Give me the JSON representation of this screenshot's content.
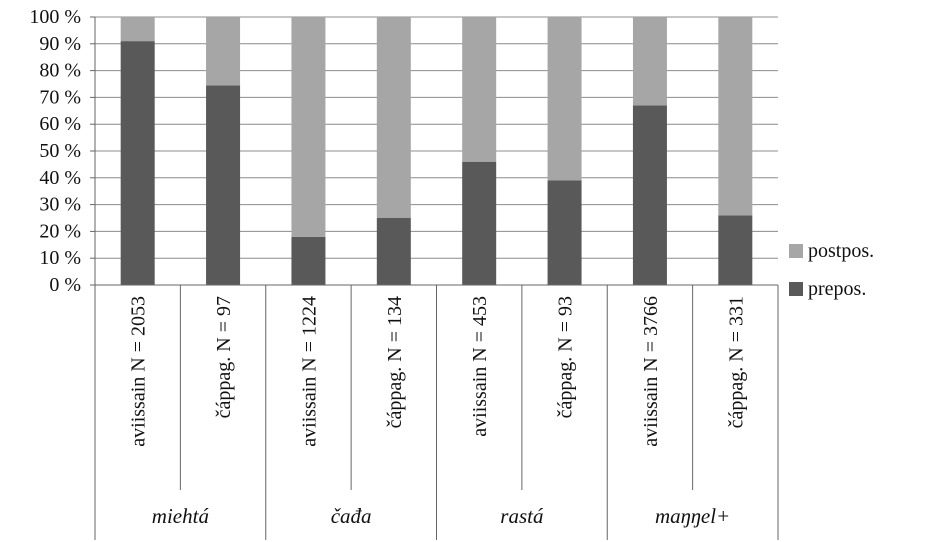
{
  "chart_data": {
    "type": "bar",
    "stacked": true,
    "percent": true,
    "ylim": [
      0,
      100
    ],
    "yticks": [
      "0 %",
      "10 %",
      "20 %",
      "30 %",
      "40 %",
      "50 %",
      "60 %",
      "70 %",
      "80 %",
      "90 %",
      "100 %"
    ],
    "grid": true,
    "legend_position": "right",
    "categories": [
      "aviissain N = 2053",
      "čáppag. N = 97",
      "aviissain N = 1224",
      "čáppag. N = 134",
      "aviissain N = 453",
      "čáppag. N = 93",
      "aviissain N = 3766",
      "čáppag. N = 331"
    ],
    "groups": [
      {
        "label": "miehtá",
        "span": 2
      },
      {
        "label": "čađa",
        "span": 2
      },
      {
        "label": "rastá",
        "span": 2
      },
      {
        "label": "maŋŋel+",
        "span": 2
      }
    ],
    "series": [
      {
        "name": "prepos.",
        "color": "#595959",
        "values": [
          91,
          74.5,
          18,
          25,
          46,
          39,
          67,
          26
        ]
      },
      {
        "name": "postpos.",
        "color": "#a6a6a6",
        "values": [
          9,
          25.5,
          82,
          75,
          54,
          61,
          33,
          74
        ]
      }
    ],
    "legend_order": [
      "postpos.",
      "prepos."
    ]
  }
}
